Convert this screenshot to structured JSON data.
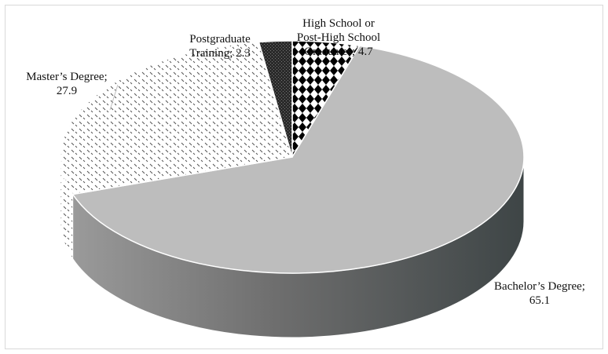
{
  "chart_data": {
    "type": "pie",
    "style": "3d",
    "categories": [
      "High School or Post-High School Graduates",
      "Bachelor’s Degree",
      "Master’s Degree",
      "Postgraduate Training"
    ],
    "values": [
      4.7,
      65.1,
      27.9,
      2.3
    ],
    "data_labels": [
      {
        "line1": "High School or",
        "line2": "Post-High School",
        "line3": "Graduates; 4.7"
      },
      {
        "line1": "Bachelor’s Degree;",
        "line2": "65.1"
      },
      {
        "line1": "Master’s Degree;",
        "line2": "27.9"
      },
      {
        "line1": "Postgraduate",
        "line2": "Training; 2.3"
      }
    ],
    "fills": [
      "diamond-checker",
      "#bdbdbd",
      "dotted-dashes",
      "#2e2e2e"
    ],
    "title": "",
    "legend": "none"
  }
}
